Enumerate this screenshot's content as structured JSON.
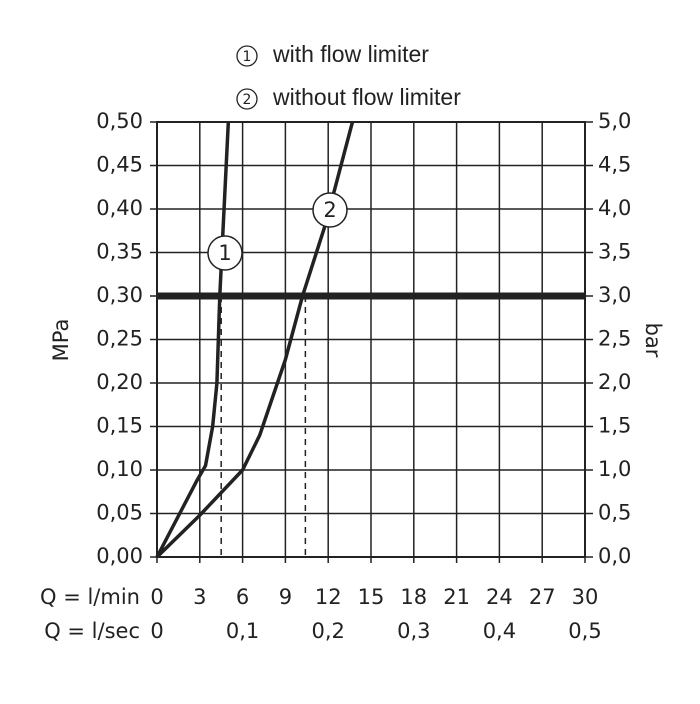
{
  "chart_data": {
    "type": "line",
    "legend_items": [
      {
        "label": "1",
        "name": "with flow limiter"
      },
      {
        "label": "2",
        "name": "without flow limiter"
      }
    ],
    "xlabel": "Q = l/min",
    "x2label": "Q = l/sec",
    "ylabel": "MPa",
    "y2label": "bar",
    "xlim": [
      0,
      30
    ],
    "xticks": [
      0,
      3,
      6,
      9,
      12,
      15,
      18,
      21,
      24,
      27,
      30
    ],
    "x2lim": [
      0,
      0.5
    ],
    "x2ticks": [
      0,
      {
        "value": 0.1,
        "label": "0,1"
      },
      {
        "value": 0.2,
        "label": "0,2"
      },
      {
        "value": 0.3,
        "label": "0,3"
      },
      {
        "value": 0.4,
        "label": "0,4"
      },
      {
        "value": 0.5,
        "label": "0,5"
      }
    ],
    "ylim": [
      0,
      0.5
    ],
    "yticks": [
      {
        "value": 0,
        "label": "0,00"
      },
      {
        "value": 0.05,
        "label": "0,05"
      },
      {
        "value": 0.1,
        "label": "0,10"
      },
      {
        "value": 0.15,
        "label": "0,15"
      },
      {
        "value": 0.2,
        "label": "0,20"
      },
      {
        "value": 0.25,
        "label": "0,25"
      },
      {
        "value": 0.3,
        "label": "0,30"
      },
      {
        "value": 0.35,
        "label": "0,35"
      },
      {
        "value": 0.4,
        "label": "0,40"
      },
      {
        "value": 0.45,
        "label": "0,45"
      },
      {
        "value": 0.5,
        "label": "0,50"
      }
    ],
    "y2lim": [
      0,
      5
    ],
    "y2ticks": [
      {
        "value": 0,
        "label": "0,0"
      },
      {
        "value": 0.5,
        "label": "0,5"
      },
      {
        "value": 1,
        "label": "1,0"
      },
      {
        "value": 1.5,
        "label": "1,5"
      },
      {
        "value": 2,
        "label": "2,0"
      },
      {
        "value": 2.5,
        "label": "2,5"
      },
      {
        "value": 3,
        "label": "3,0"
      },
      {
        "value": 3.5,
        "label": "3,5"
      },
      {
        "value": 4,
        "label": "4,0"
      },
      {
        "value": 4.5,
        "label": "4,5"
      },
      {
        "value": 5,
        "label": "5,0"
      }
    ],
    "grid": true,
    "reference_line": {
      "value": 0.3,
      "drops": [
        4.5,
        10.4
      ]
    },
    "series": [
      {
        "label": "1",
        "color": "#222222",
        "x": [
          0,
          2.8,
          3.4,
          3.9,
          4.2,
          4.4,
          4.7,
          5.0
        ],
        "values": [
          0,
          0.088,
          0.105,
          0.15,
          0.2,
          0.3,
          0.4,
          0.5
        ]
      },
      {
        "label": "2",
        "color": "#222222",
        "x": [
          0,
          3,
          6,
          7.2,
          9,
          10.2,
          11.8,
          13.7
        ],
        "values": [
          0,
          0.048,
          0.1,
          0.14,
          0.227,
          0.3,
          0.382,
          0.5
        ]
      }
    ]
  }
}
